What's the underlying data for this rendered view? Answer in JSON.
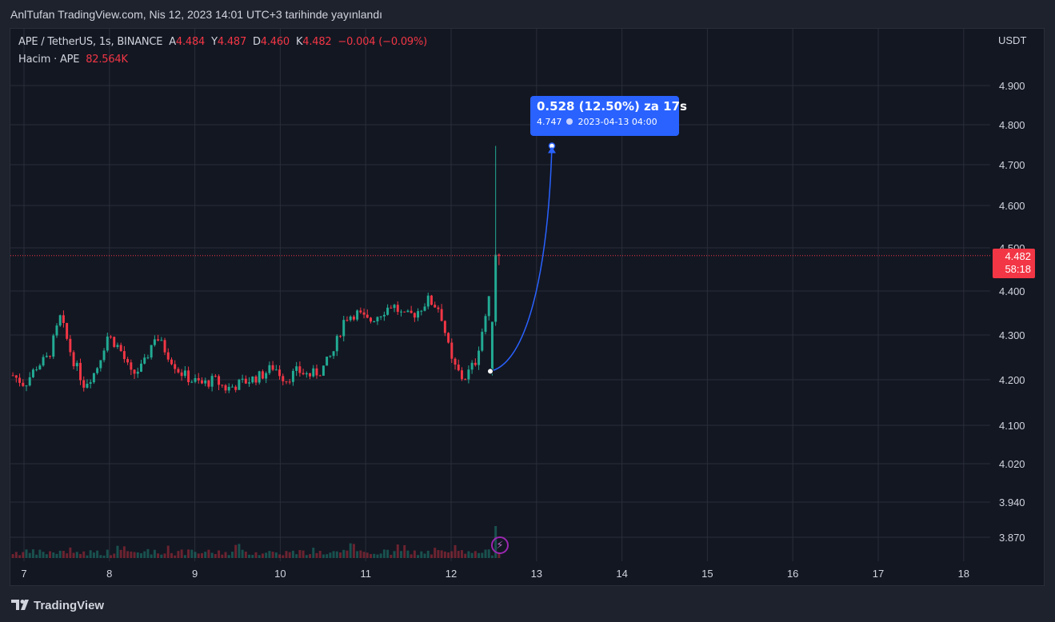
{
  "header": {
    "published": "AnlTufan TradingView.com, Nis 12, 2023 14:01 UTC+3 tarihinde yayınlandı"
  },
  "legend": {
    "symbol": "APE / TetherUS, 1s, BINANCE",
    "open_label": "A",
    "open": "4.484",
    "high_label": "Y",
    "high": "4.487",
    "low_label": "D",
    "low": "4.460",
    "close_label": "K",
    "close": "4.482",
    "change": "−0.004 (−0.09%)",
    "volume_label": "Hacim · APE",
    "volume": "82.564K"
  },
  "price_tag": {
    "price": "4.482",
    "countdown": "58:18"
  },
  "projection_tooltip": {
    "main": "0.528 (12.50%) za 17s",
    "price": "4.747",
    "datetime": "2023-04-13  04:00"
  },
  "footer": {
    "brand": "TradingView"
  },
  "colors": {
    "up": "#22ab94",
    "down": "#f23645",
    "volume_up": "#22ab9466",
    "volume_down": "#f2364566",
    "accent": "#2962ff",
    "background": "#131722"
  },
  "chart_data": {
    "type": "candlestick",
    "symbol": "APE / TetherUS",
    "interval": "1h",
    "y_axis_unit": "USDT",
    "y_ticks": [
      "4.900",
      "4.800",
      "4.700",
      "4.600",
      "4.500",
      "4.400",
      "4.300",
      "4.200",
      "4.100",
      "4.020",
      "3.940",
      "3.870"
    ],
    "x_ticks": [
      "7",
      "8",
      "9",
      "10",
      "11",
      "12",
      "13",
      "14",
      "15",
      "16",
      "17",
      "18"
    ],
    "last_price": 4.482,
    "candles_close_sample": [
      4.21,
      4.19,
      4.23,
      4.25,
      4.34,
      4.25,
      4.19,
      4.22,
      4.3,
      4.27,
      4.21,
      4.23,
      4.3,
      4.26,
      4.22,
      4.2,
      4.19,
      4.2,
      4.18,
      4.19,
      4.2,
      4.21,
      4.23,
      4.2,
      4.22,
      4.21,
      4.22,
      4.26,
      4.34,
      4.35,
      4.33,
      4.35,
      4.37,
      4.34,
      4.35,
      4.38,
      4.36,
      4.24,
      4.2,
      4.24,
      4.36,
      4.48
    ],
    "projection": {
      "from_price": 4.219,
      "to_price": 4.747,
      "change": 0.528,
      "change_pct": 12.5,
      "target_time": "2023-04-13 04:00"
    },
    "volume_last": "82.564K"
  }
}
